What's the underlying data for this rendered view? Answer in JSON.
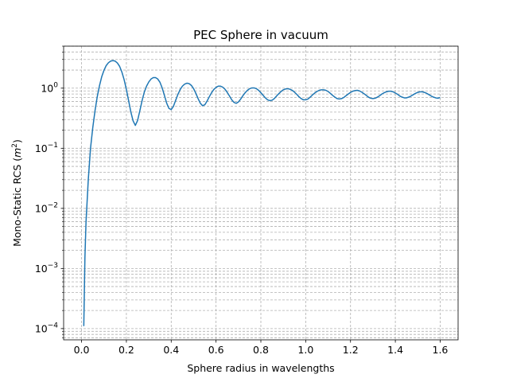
{
  "chart_data": {
    "type": "line",
    "title": "PEC Sphere in vacuum",
    "xlabel": "Sphere radius in wavelengths",
    "ylabel": "Mono-Static RCS",
    "ylabel_unit_base": "m",
    "ylabel_unit_exp": "2",
    "xlim": [
      -0.08,
      1.68
    ],
    "ylim": [
      6.5e-05,
      5.0
    ],
    "yscale": "log",
    "grid": true,
    "xticks": [
      0.0,
      0.2,
      0.4,
      0.6,
      0.8,
      1.0,
      1.2,
      1.4,
      1.6
    ],
    "xtick_labels": [
      "0.0",
      "0.2",
      "0.4",
      "0.6",
      "0.8",
      "1.0",
      "1.2",
      "1.4",
      "1.6"
    ],
    "yticks": [
      {
        "base": "10",
        "exp": "−4",
        "value": 0.0001
      },
      {
        "base": "10",
        "exp": "−3",
        "value": 0.001
      },
      {
        "base": "10",
        "exp": "−2",
        "value": 0.01
      },
      {
        "base": "10",
        "exp": "−1",
        "value": 0.1
      },
      {
        "base": "10",
        "exp": "0",
        "value": 1
      }
    ],
    "series": [
      {
        "color": "#1f77b4",
        "x": [
          0.01,
          0.015,
          0.02,
          0.03,
          0.04,
          0.05,
          0.06,
          0.07,
          0.08,
          0.09,
          0.1,
          0.11,
          0.12,
          0.13,
          0.14,
          0.15,
          0.16,
          0.17,
          0.18,
          0.19,
          0.2,
          0.21,
          0.22,
          0.23,
          0.24,
          0.25,
          0.26,
          0.27,
          0.28,
          0.29,
          0.3,
          0.31,
          0.32,
          0.33,
          0.34,
          0.35,
          0.36,
          0.37,
          0.38,
          0.39,
          0.4,
          0.41,
          0.42,
          0.43,
          0.44,
          0.45,
          0.46,
          0.47,
          0.48,
          0.49,
          0.5,
          0.51,
          0.52,
          0.53,
          0.54,
          0.55,
          0.56,
          0.57,
          0.58,
          0.59,
          0.6,
          0.61,
          0.62,
          0.63,
          0.64,
          0.65,
          0.66,
          0.67,
          0.68,
          0.69,
          0.7,
          0.71,
          0.72,
          0.73,
          0.74,
          0.75,
          0.76,
          0.77,
          0.78,
          0.79,
          0.8,
          0.81,
          0.82,
          0.83,
          0.84,
          0.85,
          0.86,
          0.87,
          0.88,
          0.89,
          0.9,
          0.91,
          0.92,
          0.93,
          0.94,
          0.95,
          0.96,
          0.97,
          0.98,
          0.99,
          1.0,
          1.01,
          1.02,
          1.03,
          1.04,
          1.05,
          1.06,
          1.07,
          1.08,
          1.09,
          1.1,
          1.11,
          1.12,
          1.13,
          1.14,
          1.15,
          1.16,
          1.17,
          1.18,
          1.19,
          1.2,
          1.21,
          1.22,
          1.23,
          1.24,
          1.25,
          1.26,
          1.27,
          1.28,
          1.29,
          1.3,
          1.31,
          1.32,
          1.33,
          1.34,
          1.35,
          1.36,
          1.37,
          1.38,
          1.39,
          1.4,
          1.41,
          1.42,
          1.43,
          1.44,
          1.45,
          1.46,
          1.47,
          1.48,
          1.49,
          1.5,
          1.51,
          1.52,
          1.53,
          1.54,
          1.55,
          1.56,
          1.57,
          1.58,
          1.59,
          1.6
        ],
        "y": [
          0.00011,
          0.0015,
          0.006,
          0.03,
          0.1,
          0.22,
          0.42,
          0.72,
          1.1,
          1.55,
          1.98,
          2.38,
          2.65,
          2.82,
          2.88,
          2.82,
          2.62,
          2.3,
          1.85,
          1.38,
          0.95,
          0.62,
          0.4,
          0.285,
          0.24,
          0.29,
          0.42,
          0.62,
          0.86,
          1.08,
          1.27,
          1.42,
          1.5,
          1.5,
          1.42,
          1.25,
          1.0,
          0.75,
          0.56,
          0.46,
          0.44,
          0.5,
          0.63,
          0.79,
          0.95,
          1.08,
          1.17,
          1.21,
          1.19,
          1.11,
          0.98,
          0.82,
          0.67,
          0.56,
          0.51,
          0.53,
          0.61,
          0.72,
          0.84,
          0.95,
          1.03,
          1.08,
          1.08,
          1.04,
          0.96,
          0.85,
          0.74,
          0.64,
          0.58,
          0.56,
          0.59,
          0.66,
          0.75,
          0.84,
          0.92,
          0.98,
          1.01,
          1.01,
          0.98,
          0.92,
          0.84,
          0.76,
          0.69,
          0.64,
          0.62,
          0.63,
          0.67,
          0.74,
          0.81,
          0.88,
          0.94,
          0.97,
          0.98,
          0.96,
          0.92,
          0.86,
          0.79,
          0.72,
          0.67,
          0.64,
          0.64,
          0.66,
          0.71,
          0.77,
          0.83,
          0.88,
          0.92,
          0.94,
          0.94,
          0.92,
          0.88,
          0.82,
          0.76,
          0.71,
          0.67,
          0.66,
          0.67,
          0.7,
          0.75,
          0.8,
          0.85,
          0.89,
          0.91,
          0.92,
          0.9,
          0.86,
          0.81,
          0.76,
          0.71,
          0.68,
          0.67,
          0.68,
          0.71,
          0.75,
          0.8,
          0.84,
          0.87,
          0.89,
          0.89,
          0.87,
          0.83,
          0.79,
          0.74,
          0.71,
          0.69,
          0.69,
          0.71,
          0.74,
          0.78,
          0.82,
          0.85,
          0.87,
          0.87,
          0.85,
          0.82,
          0.78,
          0.74,
          0.71,
          0.69,
          0.68,
          0.7
        ]
      }
    ]
  }
}
